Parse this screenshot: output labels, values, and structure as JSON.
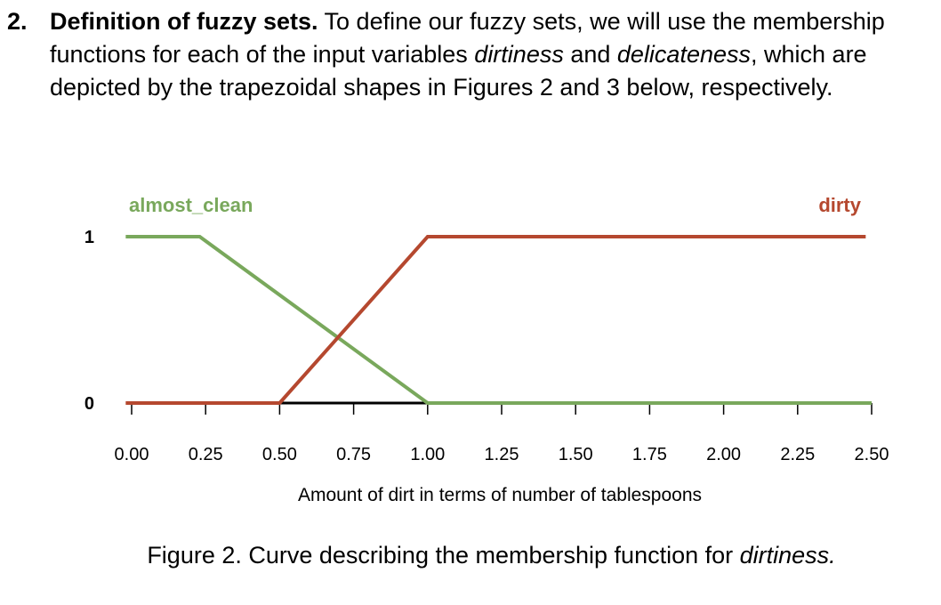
{
  "section": {
    "number": "2.",
    "heading": "Definition of fuzzy sets.",
    "text_a": " To define our fuzzy sets, we will use the membership functions for each of the input variables ",
    "term_1": "dirtiness",
    "text_b": " and ",
    "term_2": "delicateness",
    "text_c": ", which are depicted by the trapezoidal shapes in Figures 2 and 3 below, respectively."
  },
  "chart_data": {
    "type": "line",
    "title": "",
    "xlabel": "Amount of dirt in terms of number of tablespoons",
    "ylabel": "",
    "xlim": [
      0,
      2.5
    ],
    "ylim": [
      0,
      1
    ],
    "x_ticks": [
      "0.00",
      "0.25",
      "0.50",
      "0.75",
      "1.00",
      "1.25",
      "1.50",
      "1.75",
      "2.00",
      "2.25",
      "2.50"
    ],
    "y_ticks": [
      "0",
      "1"
    ],
    "grid": false,
    "series": [
      {
        "name": "almost_clean",
        "color": "#79a85c",
        "x": [
          -0.02,
          0.23,
          1.0,
          2.5
        ],
        "y": [
          1,
          1,
          0,
          0
        ]
      },
      {
        "name": "dirty",
        "color": "#b5482f",
        "x": [
          -0.02,
          0.5,
          1.0,
          2.48
        ],
        "y": [
          0,
          0,
          1,
          1
        ]
      }
    ]
  },
  "caption": {
    "prefix": "Figure 2. Curve describing the membership function for ",
    "term": "dirtiness."
  }
}
